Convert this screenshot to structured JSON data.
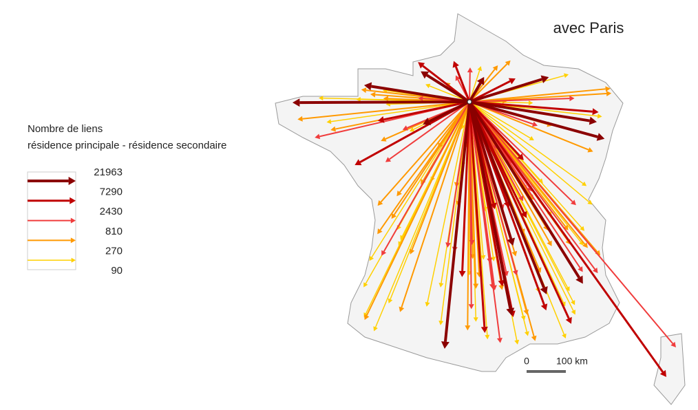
{
  "map": {
    "title": "avec Paris",
    "legend": {
      "title_lines": [
        "Nombre de liens",
        "résidence principale - résidence secondaire"
      ],
      "breaks": [
        21963,
        7290,
        2430,
        810,
        270,
        90
      ],
      "colors": [
        "#8b0000",
        "#c00000",
        "#f03c3c",
        "#ff9900",
        "#ffd000"
      ]
    },
    "scale": {
      "start": "0",
      "end": "100 km"
    }
  }
}
